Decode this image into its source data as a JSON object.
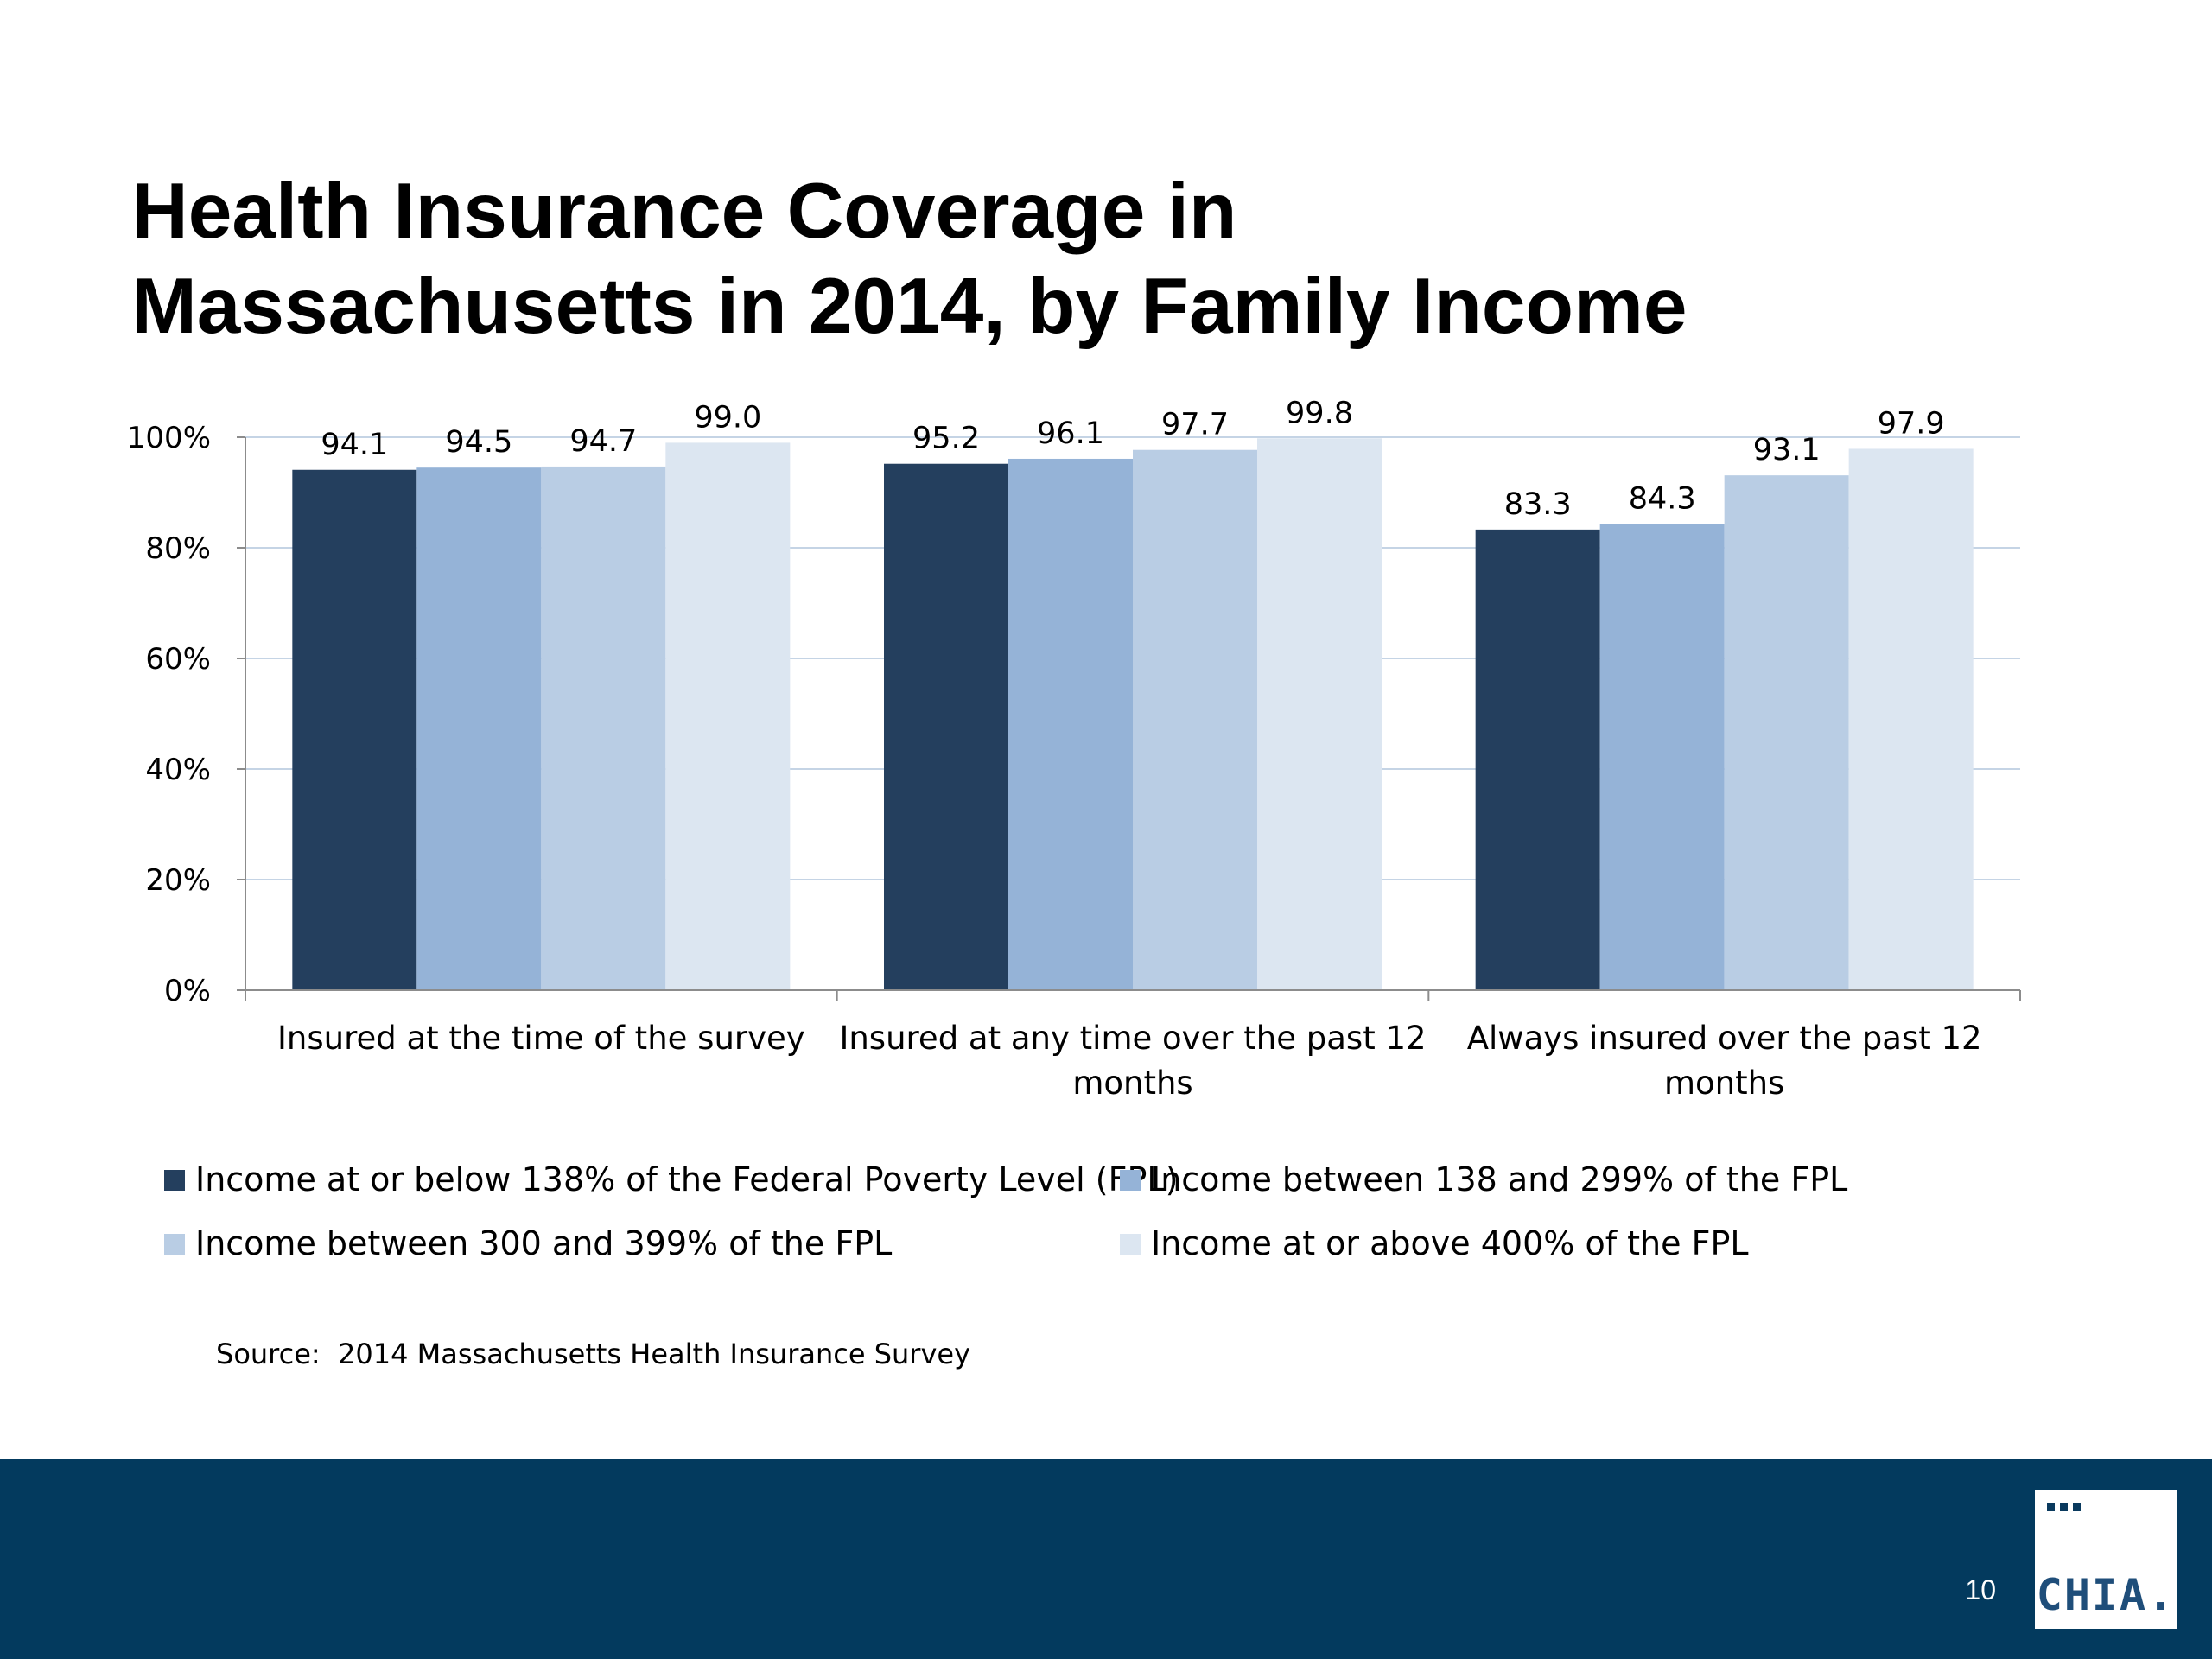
{
  "slide": {
    "title_lines": [
      "Health Insurance Coverage in",
      "Massachusetts in 2014, by Family Income"
    ],
    "source": "Source:  2014 Massachusetts Health Insurance Survey",
    "page_number": "10",
    "logo_text": "CHIA."
  },
  "colors": {
    "footer_bg": "#033a5e",
    "gridline": "#c5d4e5",
    "axis": "#8c8c8c"
  },
  "chart_data": {
    "type": "bar",
    "categories": [
      [
        "Insured at the time of the survey"
      ],
      [
        "Insured at any time over the past 12",
        "months"
      ],
      [
        "Always insured over the past 12",
        "months"
      ]
    ],
    "series": [
      {
        "name": "Income at or below 138% of the Federal Poverty Level (FPL)",
        "color": "#243f5e",
        "values": [
          94.1,
          95.2,
          83.3
        ]
      },
      {
        "name": "Income between 138 and 299% of the FPL",
        "color": "#95b3d7",
        "values": [
          94.5,
          96.1,
          84.3
        ]
      },
      {
        "name": "Income between 300 and 399% of the FPL",
        "color": "#b9cde4",
        "values": [
          94.7,
          97.7,
          93.1
        ]
      },
      {
        "name": "Income at or above 400% of the FPL",
        "color": "#dce6f1",
        "values": [
          99.0,
          99.8,
          97.9
        ]
      }
    ],
    "data_labels": [
      [
        "94.1",
        "95.2",
        "83.3"
      ],
      [
        "94.5",
        "96.1",
        "84.3"
      ],
      [
        "94.7",
        "97.7",
        "93.1"
      ],
      [
        "99.0",
        "99.8",
        "97.9"
      ]
    ],
    "yticks": [
      "0%",
      "20%",
      "40%",
      "60%",
      "80%",
      "100%"
    ],
    "ylim": [
      0,
      100
    ],
    "grid": true,
    "legend": "bottom"
  }
}
